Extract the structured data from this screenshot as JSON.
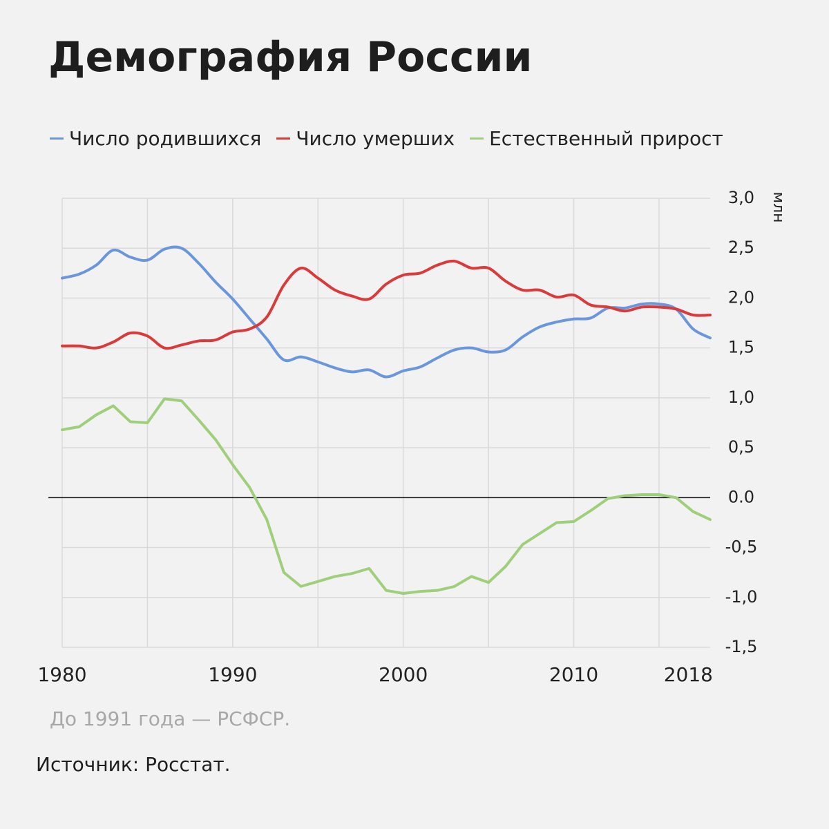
{
  "chart_data": {
    "type": "line",
    "title": "Демография России",
    "y_axis_label": "млн",
    "note": "До 1991 года — РСФСР.",
    "source": "Источник: Росстат.",
    "x": [
      1980,
      1981,
      1982,
      1983,
      1984,
      1985,
      1986,
      1987,
      1988,
      1989,
      1990,
      1991,
      1992,
      1993,
      1994,
      1995,
      1996,
      1997,
      1998,
      1999,
      2000,
      2001,
      2002,
      2003,
      2004,
      2005,
      2006,
      2007,
      2008,
      2009,
      2010,
      2011,
      2012,
      2013,
      2014,
      2015,
      2016,
      2017,
      2018
    ],
    "series": [
      {
        "name": "Число родившихся",
        "color": "#6a96dc",
        "smooth": true,
        "values": [
          2.2,
          2.24,
          2.33,
          2.48,
          2.41,
          2.38,
          2.49,
          2.5,
          2.35,
          2.16,
          1.99,
          1.79,
          1.59,
          1.38,
          1.41,
          1.36,
          1.3,
          1.26,
          1.28,
          1.21,
          1.27,
          1.31,
          1.4,
          1.48,
          1.5,
          1.46,
          1.48,
          1.61,
          1.71,
          1.76,
          1.79,
          1.8,
          1.9,
          1.9,
          1.94,
          1.94,
          1.89,
          1.69,
          1.6
        ]
      },
      {
        "name": "Число умерших",
        "color": "#d93a3a",
        "smooth": true,
        "values": [
          1.52,
          1.52,
          1.5,
          1.56,
          1.65,
          1.62,
          1.5,
          1.53,
          1.57,
          1.58,
          1.66,
          1.69,
          1.81,
          2.13,
          2.3,
          2.2,
          2.08,
          2.02,
          1.99,
          2.14,
          2.23,
          2.25,
          2.33,
          2.37,
          2.3,
          2.3,
          2.17,
          2.08,
          2.08,
          2.01,
          2.03,
          1.93,
          1.91,
          1.87,
          1.91,
          1.91,
          1.89,
          1.83,
          1.83
        ]
      },
      {
        "name": "Естественный прирост",
        "color": "#9fcf7a",
        "smooth": false,
        "values": [
          0.68,
          0.71,
          0.83,
          0.92,
          0.76,
          0.75,
          0.99,
          0.97,
          0.78,
          0.58,
          0.33,
          0.1,
          -0.22,
          -0.75,
          -0.89,
          -0.84,
          -0.79,
          -0.76,
          -0.71,
          -0.93,
          -0.96,
          -0.94,
          -0.93,
          -0.89,
          -0.79,
          -0.85,
          -0.69,
          -0.47,
          -0.36,
          -0.25,
          -0.24,
          -0.13,
          -0.01,
          0.02,
          0.03,
          0.03,
          0.0,
          -0.14,
          -0.22
        ]
      }
    ],
    "xlim": [
      1980,
      2018
    ],
    "xticks": [
      1980,
      1990,
      2000,
      2010,
      2018
    ],
    "x_gridlines": [
      1980,
      1985,
      1990,
      1995,
      2000,
      2005,
      2010,
      2015
    ],
    "ylim": [
      -1.5,
      3.0
    ],
    "yticks": [
      {
        "value": -1.5,
        "label": "-1,5"
      },
      {
        "value": -1.0,
        "label": "-1,0"
      },
      {
        "value": -0.5,
        "label": "-0,5"
      },
      {
        "value": 0,
        "label": "0.0"
      },
      {
        "value": 0.5,
        "label": "0,5"
      },
      {
        "value": 1.0,
        "label": "1,0"
      },
      {
        "value": 1.5,
        "label": "1,5"
      },
      {
        "value": 2.0,
        "label": "2,0"
      },
      {
        "value": 2.5,
        "label": "2,5"
      },
      {
        "value": 3.0,
        "label": "3,0"
      }
    ],
    "y_axis_side": "right",
    "grid": true,
    "legend": "top"
  }
}
